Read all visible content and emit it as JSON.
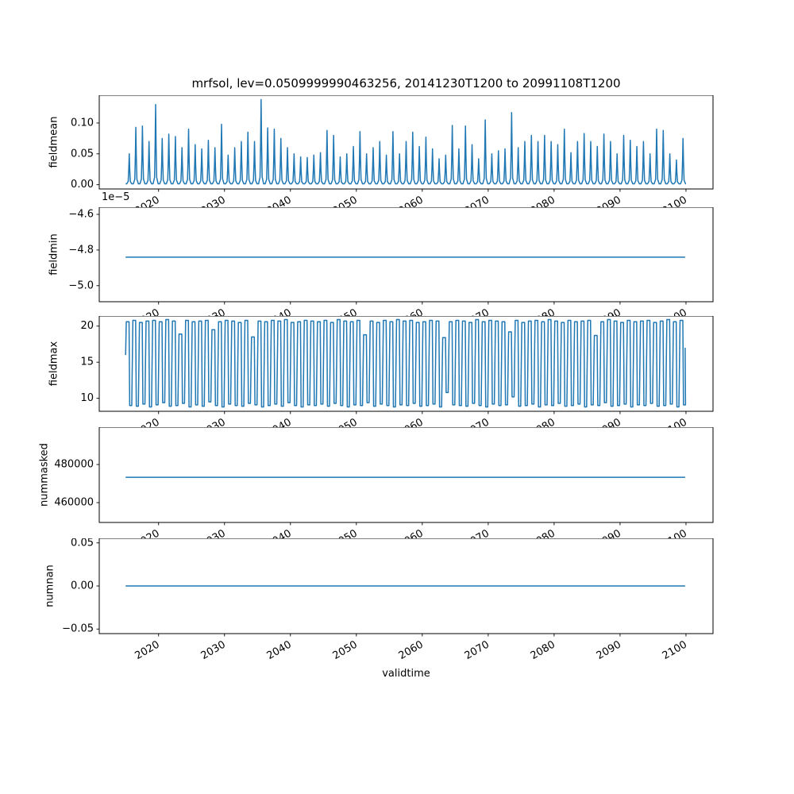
{
  "figure": {
    "title": "mrfsol, lev=0.0509999990463256, 20141230T1200 to 20991108T1200",
    "xlabel": "validtime"
  },
  "style": {
    "line_color": "#1f77b4",
    "axis_color": "#000000",
    "background": "#ffffff"
  },
  "x_axis": {
    "label": "validtime",
    "lim": [
      2011.0,
      2104.1
    ],
    "ticks": [
      2020,
      2030,
      2040,
      2050,
      2060,
      2070,
      2080,
      2090,
      2100
    ],
    "tick_labels": [
      "2020",
      "2030",
      "2040",
      "2050",
      "2060",
      "2070",
      "2080",
      "2090",
      "2100"
    ],
    "data_range": [
      2015.0,
      2099.87
    ]
  },
  "chart_data": [
    {
      "type": "line",
      "name": "fieldmean",
      "ylabel": "fieldmean",
      "ylim": [
        -0.0069,
        0.1449
      ],
      "yticks": [
        {
          "v": 0.0,
          "label": "0.00"
        },
        {
          "v": 0.05,
          "label": "0.05"
        },
        {
          "v": 0.1,
          "label": "0.10"
        }
      ],
      "series": {
        "kind": "spikes",
        "baseline": 0.0015,
        "year_start": 2015,
        "peaks": [
          0.05,
          0.093,
          0.095,
          0.07,
          0.13,
          0.075,
          0.082,
          0.078,
          0.06,
          0.09,
          0.065,
          0.058,
          0.072,
          0.06,
          0.098,
          0.048,
          0.06,
          0.07,
          0.085,
          0.07,
          0.138,
          0.092,
          0.09,
          0.075,
          0.06,
          0.05,
          0.045,
          0.044,
          0.048,
          0.052,
          0.088,
          0.08,
          0.045,
          0.05,
          0.062,
          0.086,
          0.05,
          0.06,
          0.07,
          0.048,
          0.086,
          0.05,
          0.07,
          0.085,
          0.062,
          0.077,
          0.058,
          0.042,
          0.048,
          0.096,
          0.058,
          0.095,
          0.065,
          0.042,
          0.105,
          0.05,
          0.055,
          0.058,
          0.117,
          0.06,
          0.07,
          0.08,
          0.07,
          0.08,
          0.07,
          0.065,
          0.09,
          0.052,
          0.07,
          0.083,
          0.07,
          0.062,
          0.082,
          0.07,
          0.05,
          0.08,
          0.072,
          0.062,
          0.07,
          0.05,
          0.09,
          0.088,
          0.05,
          0.04,
          0.075
        ]
      }
    },
    {
      "type": "line",
      "name": "fieldmin",
      "ylabel": "fieldmin",
      "offset_text": "1e−5",
      "ylim": [
        -5.09e-05,
        -4.56e-05
      ],
      "yticks": [
        {
          "v": -4.6e-05,
          "label": "−4.6"
        },
        {
          "v": -4.8e-05,
          "label": "−4.8"
        },
        {
          "v": -5e-05,
          "label": "−5.0"
        }
      ],
      "series": {
        "kind": "constant",
        "value": -4.84e-05
      }
    },
    {
      "type": "line",
      "name": "fieldmax",
      "ylabel": "fieldmax",
      "ylim": [
        8.2,
        21.4
      ],
      "yticks": [
        {
          "v": 10,
          "label": "10"
        },
        {
          "v": 15,
          "label": "15"
        },
        {
          "v": 20,
          "label": "20"
        }
      ],
      "series": {
        "kind": "square",
        "year_start": 2015,
        "tops": [
          20.6,
          20.8,
          20.5,
          20.7,
          20.8,
          20.6,
          20.9,
          20.7,
          18.9,
          20.8,
          20.6,
          20.7,
          20.8,
          19.5,
          20.6,
          20.8,
          20.7,
          20.5,
          20.8,
          18.5,
          20.7,
          20.6,
          20.8,
          20.7,
          20.9,
          20.5,
          20.6,
          20.8,
          20.7,
          20.6,
          20.8,
          20.5,
          20.9,
          20.7,
          20.6,
          20.8,
          18.8,
          20.7,
          20.5,
          20.8,
          20.6,
          20.9,
          20.7,
          20.8,
          20.5,
          20.6,
          20.8,
          20.7,
          18.4,
          20.6,
          20.8,
          20.7,
          20.5,
          20.9,
          20.6,
          20.8,
          20.7,
          20.6,
          19.2,
          20.8,
          20.5,
          20.7,
          20.8,
          20.6,
          20.9,
          20.7,
          20.5,
          20.8,
          20.6,
          20.7,
          20.8,
          18.7,
          20.6,
          20.9,
          20.7,
          20.5,
          20.8,
          20.6,
          20.7,
          20.8,
          20.5,
          20.7,
          20.9,
          20.6,
          20.8
        ],
        "bottoms": [
          9.0,
          8.9,
          9.2,
          8.8,
          9.1,
          9.4,
          8.9,
          9.0,
          9.3,
          8.8,
          9.1,
          8.9,
          9.5,
          9.0,
          8.8,
          9.2,
          9.0,
          8.9,
          9.3,
          9.1,
          8.8,
          9.0,
          9.2,
          8.9,
          9.4,
          9.0,
          8.8,
          9.1,
          9.0,
          9.2,
          8.9,
          9.3,
          9.0,
          8.8,
          9.1,
          9.0,
          9.4,
          8.9,
          9.2,
          9.0,
          8.8,
          9.1,
          9.0,
          9.3,
          8.9,
          9.0,
          9.2,
          8.8,
          10.8,
          9.1,
          9.0,
          8.9,
          9.3,
          9.0,
          8.8,
          9.2,
          9.0,
          9.1,
          10.2,
          8.9,
          9.0,
          9.2,
          8.8,
          9.1,
          9.0,
          9.3,
          8.9,
          9.0,
          9.2,
          8.8,
          9.1,
          9.0,
          9.4,
          8.9,
          9.0,
          9.2,
          8.8,
          9.1,
          9.0,
          9.3,
          8.9,
          9.0,
          9.2,
          8.8,
          9.1
        ]
      }
    },
    {
      "type": "line",
      "name": "nummasked",
      "ylabel": "nummasked",
      "ylim": [
        449600,
        499600
      ],
      "yticks": [
        {
          "v": 460000,
          "label": "460000"
        },
        {
          "v": 480000,
          "label": "480000"
        }
      ],
      "series": {
        "kind": "constant",
        "value": 473300
      }
    },
    {
      "type": "line",
      "name": "numnan",
      "ylabel": "numnan",
      "ylim": [
        -0.0553,
        0.0553
      ],
      "yticks": [
        {
          "v": -0.05,
          "label": "−0.05"
        },
        {
          "v": 0.0,
          "label": "0.00"
        },
        {
          "v": 0.05,
          "label": "0.05"
        }
      ],
      "series": {
        "kind": "constant",
        "value": 0.0
      }
    }
  ]
}
